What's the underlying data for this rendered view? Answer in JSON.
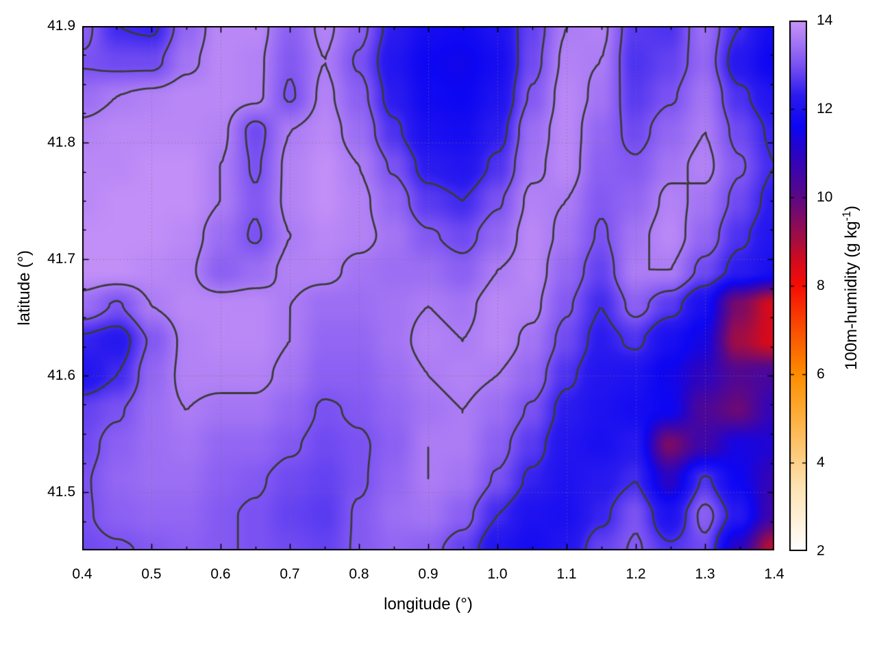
{
  "chart_data": {
    "type": "heatmap",
    "title": "",
    "xlabel": "longitude (°)",
    "ylabel": "latitude (°)",
    "x_range": [
      0.4,
      1.4
    ],
    "y_range": [
      41.45,
      41.9
    ],
    "z_range": [
      2,
      14
    ],
    "x_ticks": [
      {
        "value": 0.4,
        "label": "0.4"
      },
      {
        "value": 0.5,
        "label": "0.5"
      },
      {
        "value": 0.6,
        "label": "0.6"
      },
      {
        "value": 0.7,
        "label": "0.7"
      },
      {
        "value": 0.8,
        "label": "0.8"
      },
      {
        "value": 0.9,
        "label": "0.9"
      },
      {
        "value": 1.0,
        "label": "1.0"
      },
      {
        "value": 1.1,
        "label": "1.1"
      },
      {
        "value": 1.2,
        "label": "1.2"
      },
      {
        "value": 1.3,
        "label": "1.3"
      },
      {
        "value": 1.4,
        "label": "1.4"
      }
    ],
    "x_minor_ticks": [
      0.45,
      0.55,
      0.65,
      0.75,
      0.85,
      0.95,
      1.05,
      1.15,
      1.25,
      1.35
    ],
    "y_ticks": [
      {
        "value": 41.5,
        "label": "41.5"
      },
      {
        "value": 41.6,
        "label": "41.6"
      },
      {
        "value": 41.7,
        "label": "41.7"
      },
      {
        "value": 41.8,
        "label": "41.8"
      },
      {
        "value": 41.9,
        "label": "41.9"
      }
    ],
    "y_minor_ticks": [
      41.475,
      41.525,
      41.55,
      41.575,
      41.625,
      41.65,
      41.675,
      41.725,
      41.75,
      41.775,
      41.825,
      41.85,
      41.875
    ],
    "colorbar": {
      "title_parts": {
        "prefix": "100m-humidity (g kg",
        "sup": "-1",
        "suffix": ")"
      },
      "range": [
        2,
        14
      ],
      "ticks": [
        {
          "value": 2,
          "label": "2"
        },
        {
          "value": 4,
          "label": "4"
        },
        {
          "value": 6,
          "label": "6"
        },
        {
          "value": 8,
          "label": "8"
        },
        {
          "value": 10,
          "label": "10"
        },
        {
          "value": 12,
          "label": "12"
        },
        {
          "value": 14,
          "label": "14"
        }
      ]
    },
    "palette": [
      [
        2.0,
        "#ffffff"
      ],
      [
        3.5,
        "#fde2b0"
      ],
      [
        5.0,
        "#fdb040"
      ],
      [
        6.0,
        "#fd8d00"
      ],
      [
        7.0,
        "#fa4f02"
      ],
      [
        8.0,
        "#f60d05"
      ],
      [
        8.6,
        "#d10a20"
      ],
      [
        9.0,
        "#a80d3e"
      ],
      [
        10.0,
        "#5c0886"
      ],
      [
        11.0,
        "#2a04c4"
      ],
      [
        11.6,
        "#0d06f2"
      ],
      [
        12.3,
        "#2b1bee"
      ],
      [
        13.0,
        "#7b52f2"
      ],
      [
        13.6,
        "#ab7cf4"
      ],
      [
        14.0,
        "#c995f8"
      ]
    ],
    "contour_levels": [
      12.5,
      13.05,
      13.6
    ],
    "grid": {
      "lon_start": 0.4,
      "lon_step": 0.05,
      "ncols": 21,
      "lat_start": 41.9,
      "lat_step": -0.03,
      "nrows": 16,
      "values": [
        [
          13.2,
          12.5,
          12.4,
          13.3,
          13.8,
          13.8,
          13.2,
          13.7,
          13.2,
          12.3,
          11.8,
          11.7,
          12.0,
          12.8,
          13.6,
          13.7,
          12.7,
          12.6,
          13.4,
          12.5,
          11.8
        ],
        [
          13.0,
          12.9,
          12.9,
          13.5,
          13.8,
          13.7,
          13.1,
          13.6,
          13.0,
          12.1,
          11.6,
          11.5,
          11.8,
          12.9,
          13.7,
          13.6,
          12.6,
          12.8,
          13.3,
          12.2,
          11.6
        ],
        [
          13.4,
          13.6,
          13.7,
          13.8,
          13.8,
          13.7,
          13.0,
          13.7,
          13.2,
          12.3,
          11.7,
          11.6,
          12.0,
          13.1,
          13.8,
          13.5,
          12.7,
          13.0,
          13.5,
          12.6,
          12.1
        ],
        [
          13.7,
          13.8,
          13.8,
          13.8,
          13.7,
          12.9,
          13.6,
          13.8,
          13.4,
          12.6,
          11.9,
          11.8,
          12.3,
          13.4,
          13.8,
          13.3,
          12.9,
          13.3,
          13.6,
          12.9,
          12.4
        ],
        [
          13.8,
          13.8,
          13.9,
          13.9,
          13.6,
          13.0,
          13.7,
          13.9,
          13.6,
          13.0,
          12.3,
          12.1,
          12.6,
          13.5,
          13.8,
          13.2,
          13.1,
          13.5,
          13.7,
          13.1,
          12.5
        ],
        [
          13.8,
          13.9,
          13.9,
          13.9,
          13.6,
          13.1,
          13.7,
          13.9,
          13.7,
          13.3,
          12.7,
          12.5,
          13.0,
          13.7,
          13.6,
          13.1,
          13.3,
          13.7,
          13.5,
          12.9,
          12.3
        ],
        [
          13.9,
          13.9,
          13.9,
          13.8,
          13.4,
          13.0,
          13.6,
          13.8,
          13.7,
          13.5,
          13.1,
          12.9,
          13.3,
          13.8,
          13.5,
          13.0,
          13.5,
          13.8,
          13.3,
          12.6,
          12.1
        ],
        [
          13.9,
          13.9,
          13.8,
          13.7,
          13.2,
          13.4,
          13.7,
          13.7,
          13.5,
          13.4,
          13.4,
          13.2,
          13.6,
          13.8,
          13.3,
          12.8,
          13.6,
          13.6,
          12.9,
          12.3,
          11.9
        ],
        [
          13.4,
          13.0,
          13.6,
          13.8,
          13.8,
          13.8,
          13.6,
          13.4,
          13.4,
          13.5,
          13.6,
          13.5,
          13.8,
          13.7,
          13.1,
          12.5,
          13.2,
          12.7,
          11.9,
          9.6,
          8.5
        ],
        [
          12.4,
          12.2,
          13.1,
          13.7,
          13.8,
          13.8,
          13.6,
          13.3,
          13.3,
          13.5,
          13.7,
          13.6,
          13.8,
          13.5,
          12.9,
          12.3,
          12.6,
          11.9,
          11.4,
          9.1,
          8.5
        ],
        [
          12.1,
          12.5,
          13.3,
          13.7,
          13.7,
          13.7,
          13.5,
          13.2,
          13.2,
          13.4,
          13.6,
          13.7,
          13.6,
          13.3,
          12.6,
          12.1,
          12.0,
          11.5,
          10.9,
          10.2,
          10.4
        ],
        [
          12.8,
          13.0,
          13.4,
          13.6,
          13.5,
          13.5,
          13.3,
          13.0,
          13.1,
          13.3,
          13.5,
          13.6,
          13.4,
          13.0,
          12.3,
          12.0,
          11.8,
          11.6,
          10.3,
          9.8,
          10.8
        ],
        [
          12.9,
          13.2,
          13.4,
          13.5,
          13.3,
          13.3,
          13.1,
          12.9,
          13.0,
          13.2,
          13.6,
          13.6,
          13.2,
          12.7,
          12.1,
          11.9,
          12.2,
          9.6,
          10.6,
          11.4,
          11.2
        ],
        [
          13.0,
          13.3,
          13.4,
          13.4,
          13.2,
          13.1,
          12.9,
          12.8,
          13.0,
          13.3,
          13.6,
          13.5,
          13.0,
          12.4,
          12.0,
          12.2,
          12.5,
          11.0,
          12.6,
          11.6,
          10.8
        ],
        [
          13.0,
          13.2,
          13.3,
          13.3,
          13.1,
          13.0,
          12.8,
          12.7,
          13.1,
          13.4,
          13.5,
          13.2,
          12.5,
          12.0,
          11.9,
          12.4,
          13.0,
          12.0,
          13.2,
          12.2,
          10.6
        ],
        [
          12.9,
          13.0,
          13.1,
          13.2,
          13.1,
          13.0,
          12.9,
          12.8,
          13.1,
          13.3,
          13.2,
          12.8,
          12.1,
          11.8,
          12.1,
          12.8,
          13.1,
          12.6,
          12.9,
          11.0,
          8.8
        ]
      ]
    },
    "styles": {
      "contour_color": "#3a3a3a",
      "grid_dot_color": "rgba(120,110,130,0.65)",
      "tick_color": "#000000",
      "border_color": "#000000",
      "background": "#ffffff"
    }
  }
}
